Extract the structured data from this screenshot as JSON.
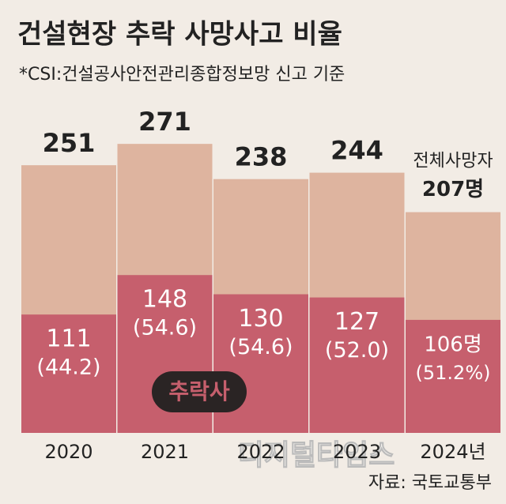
{
  "chart_data": {
    "type": "bar",
    "title": "건설현장 추락 사망사고 비율",
    "subtitle": "*CSI:건설공사안전관리종합정보망 신고 기준",
    "categories": [
      "2020",
      "2021",
      "2022",
      "2023",
      "2024년"
    ],
    "series": [
      {
        "name": "전체사망자",
        "color": "#deb49f",
        "values": [
          251,
          271,
          238,
          244,
          207
        ],
        "value_labels": [
          "251",
          "271",
          "238",
          "244",
          "207명"
        ]
      },
      {
        "name": "추락사",
        "color": "#c65f6d",
        "values": [
          111,
          148,
          130,
          127,
          106
        ],
        "value_labels": [
          "111",
          "148",
          "130",
          "127",
          "106명"
        ]
      },
      {
        "values": [
          44.2,
          54.6,
          54.6,
          52.0,
          51.2
        ],
        "value_labels": [
          "(44.2)",
          "(54.6)",
          "(54.6)",
          "(52.0)",
          "(51.2%)"
        ]
      }
    ],
    "source": "자료: 국토교통부",
    "watermark": "디지털타임스"
  }
}
